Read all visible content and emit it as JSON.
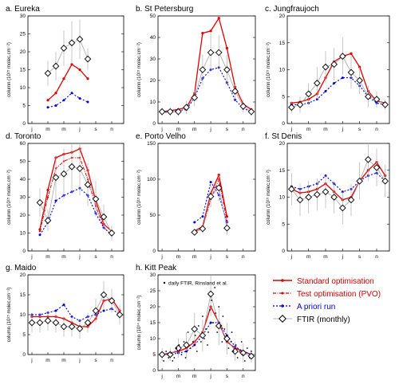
{
  "figure": {
    "ylabel_1e15": "column (10¹⁵ molec.cm⁻²)",
    "ylabel_1e14": "column (10¹⁴ molec.cm⁻²)",
    "month_ticks": [
      "j",
      "m",
      "m",
      "j",
      "s",
      "n"
    ],
    "colors": {
      "standard": "#e00000",
      "test": "#e00000",
      "apriori": "#0000e0",
      "ftir": "#000000",
      "ftir_line": "#9a9a9a",
      "errbar": "#b0b0b0"
    }
  },
  "legend": {
    "standard": "Standard optimisation",
    "test": "Test optimisation (PVO)",
    "apriori": "A priori run",
    "ftir": "FTIR (monthly)",
    "daily_note": "daily FTIR, Rinsland et al."
  },
  "chart_data": [
    {
      "type": "line",
      "title": "a.  Eureka",
      "ylabel": "column (10¹⁵ molec.cm⁻²)",
      "ylim": [
        0,
        30
      ],
      "yticks": [
        0,
        5,
        10,
        15,
        20,
        25,
        30
      ],
      "series": [
        {
          "name": "Standard optimisation",
          "x": [
            3,
            4,
            5,
            6,
            7,
            8
          ],
          "values": [
            6.5,
            8.5,
            12.5,
            16.5,
            15,
            12.5
          ]
        },
        {
          "name": "A priori run",
          "x": [
            3,
            4,
            5,
            6,
            7,
            8
          ],
          "values": [
            4.5,
            5,
            6.5,
            8.5,
            7,
            6
          ]
        },
        {
          "name": "FTIR (monthly)",
          "x": [
            3,
            4,
            5,
            6,
            7,
            8
          ],
          "values": [
            14,
            16,
            21,
            22.5,
            23.5,
            18
          ],
          "err": [
            3.5,
            4,
            5,
            6,
            5.5,
            3
          ]
        }
      ]
    },
    {
      "type": "line",
      "title": "b.  St Petersburg",
      "ylabel": "column (10¹⁵ molec.cm⁻²)",
      "ylim": [
        0,
        50
      ],
      "yticks": [
        0,
        10,
        20,
        30,
        40,
        50
      ],
      "series": [
        {
          "name": "Standard optimisation",
          "x": [
            1,
            2,
            3,
            4,
            5,
            6,
            7,
            8,
            9,
            10,
            11,
            12
          ],
          "values": [
            5.5,
            6,
            6.5,
            7.5,
            14,
            42,
            43,
            49,
            35,
            17,
            9,
            6.5
          ]
        },
        {
          "name": "A priori run",
          "x": [
            1,
            2,
            3,
            4,
            5,
            6,
            7,
            8,
            9,
            10,
            11,
            12
          ],
          "values": [
            5,
            5.5,
            6,
            6.5,
            12,
            21,
            25,
            26,
            19,
            11,
            7,
            5.5
          ]
        },
        {
          "name": "FTIR (monthly)",
          "x": [
            1,
            2,
            3,
            4,
            5,
            6,
            7,
            8,
            9,
            10,
            11,
            12
          ],
          "values": [
            5.5,
            5.5,
            5.5,
            7.5,
            12,
            25,
            33,
            33,
            25,
            15,
            8,
            5.5
          ],
          "err": [
            2,
            2,
            2,
            3,
            4,
            7,
            9,
            8,
            7,
            4,
            3,
            2
          ]
        }
      ]
    },
    {
      "type": "line",
      "title": "c.  Jungfraujoch",
      "ylabel": "column (10¹⁵ molec.cm⁻²)",
      "ylim": [
        0,
        20
      ],
      "yticks": [
        0,
        5,
        10,
        15,
        20
      ],
      "series": [
        {
          "name": "Standard optimisation",
          "x": [
            1,
            2,
            3,
            4,
            5,
            6,
            7,
            8,
            9,
            10,
            11,
            12
          ],
          "values": [
            3.8,
            4,
            4.5,
            5.5,
            8.5,
            11.5,
            12.5,
            13,
            10.5,
            6,
            4.2,
            3.8
          ]
        },
        {
          "name": "A priori run",
          "x": [
            1,
            2,
            3,
            4,
            5,
            6,
            7,
            8,
            9,
            10,
            11,
            12
          ],
          "values": [
            3.5,
            3.5,
            3.8,
            4.5,
            6,
            7.5,
            8.5,
            8.5,
            7,
            5,
            3.8,
            3.5
          ]
        },
        {
          "name": "FTIR (monthly)",
          "x": [
            1,
            2,
            3,
            4,
            5,
            6,
            7,
            8,
            9,
            10,
            11,
            12
          ],
          "values": [
            3,
            3.5,
            5.5,
            7.5,
            10.5,
            11,
            12.5,
            9.5,
            8,
            5,
            4.5,
            3.5
          ],
          "err": [
            1,
            1.5,
            2,
            3,
            3,
            3,
            3.5,
            3,
            2.5,
            2,
            1.5,
            1
          ]
        }
      ]
    },
    {
      "type": "line",
      "title": "d.  Toronto",
      "ylabel": "column (10¹⁵ molec.cm⁻²)",
      "ylim": [
        0,
        60
      ],
      "yticks": [
        0,
        10,
        20,
        30,
        40,
        50,
        60
      ],
      "series": [
        {
          "name": "Standard optimisation",
          "x": [
            2,
            3,
            4,
            5,
            6,
            7,
            8,
            9,
            10,
            11
          ],
          "values": [
            12,
            34,
            52,
            54,
            55,
            57,
            45,
            28,
            15,
            11
          ]
        },
        {
          "name": "Test optimisation (PVO)",
          "x": [
            2,
            3,
            4,
            5,
            6,
            7,
            8,
            9,
            10,
            11
          ],
          "values": [
            11,
            30,
            46,
            50,
            52,
            52,
            40,
            25,
            13,
            9
          ]
        },
        {
          "name": "A priori run",
          "x": [
            2,
            3,
            4,
            5,
            6,
            7,
            8,
            9,
            10,
            11
          ],
          "values": [
            9,
            16,
            28,
            31,
            33,
            35,
            31,
            21,
            13,
            9
          ]
        },
        {
          "name": "FTIR (monthly)",
          "x": [
            2,
            3,
            4,
            5,
            6,
            7,
            8,
            9,
            10,
            11
          ],
          "values": [
            27,
            17,
            41,
            43,
            47,
            46,
            37,
            29,
            19,
            10
          ],
          "err": [
            8,
            6,
            12,
            14,
            15,
            15,
            12,
            10,
            7,
            4
          ]
        }
      ]
    },
    {
      "type": "line",
      "title": "e.  Porto Velho",
      "ylabel": "column (10¹⁵ molec.cm⁻²)",
      "ylim": [
        0,
        150
      ],
      "yticks": [
        0,
        50,
        100,
        150
      ],
      "series": [
        {
          "name": "Standard optimisation",
          "x": [
            5,
            6,
            7,
            8,
            9
          ],
          "values": [
            28,
            34,
            80,
            106,
            48
          ]
        },
        {
          "name": "Test optimisation (PVO)",
          "x": [
            5,
            6,
            7,
            8,
            9
          ],
          "values": [
            27,
            32,
            72,
            100,
            42
          ]
        },
        {
          "name": "A priori run",
          "x": [
            5,
            6,
            7,
            8,
            9
          ],
          "values": [
            40,
            48,
            96,
            78,
            40
          ]
        },
        {
          "name": "FTIR (monthly)",
          "x": [
            5,
            6,
            7,
            8,
            9
          ],
          "values": [
            26,
            31,
            76,
            88,
            32
          ],
          "err": [
            4,
            6,
            15,
            18,
            10
          ]
        }
      ]
    },
    {
      "type": "line",
      "title": "f.  St Denis",
      "ylabel": "column (10¹⁵ molec.cm⁻²)",
      "ylim": [
        0,
        20
      ],
      "yticks": [
        0,
        5,
        10,
        15,
        20
      ],
      "series": [
        {
          "name": "Standard optimisation",
          "x": [
            1,
            2,
            3,
            4,
            5,
            6,
            7,
            8,
            9,
            10,
            11,
            12
          ],
          "values": [
            11.5,
            10.8,
            11,
            11.5,
            12.5,
            11,
            9.5,
            10,
            13,
            15,
            16.5,
            14
          ]
        },
        {
          "name": "A priori run",
          "x": [
            1,
            2,
            3,
            4,
            5,
            6,
            7,
            8,
            9,
            10,
            11,
            12
          ],
          "values": [
            12,
            11.5,
            12,
            12.5,
            14,
            12.5,
            11,
            11.5,
            13,
            14,
            14.5,
            13
          ]
        },
        {
          "name": "FTIR (monthly)",
          "x": [
            1,
            2,
            3,
            4,
            5,
            6,
            7,
            8,
            9,
            10,
            11,
            12
          ],
          "values": [
            11.5,
            9.5,
            10,
            10.5,
            11,
            10,
            8,
            9.5,
            13,
            17,
            15.5,
            13
          ],
          "err": [
            3,
            3,
            3,
            3,
            3,
            3,
            3,
            3,
            3.5,
            4,
            3.5,
            3
          ]
        }
      ]
    },
    {
      "type": "line",
      "title": "g.  Maido",
      "ylabel": "column (10¹⁵ molec.cm⁻²)",
      "ylim": [
        0,
        20
      ],
      "yticks": [
        0,
        5,
        10,
        15,
        20
      ],
      "series": [
        {
          "name": "Standard optimisation",
          "x": [
            1,
            2,
            3,
            4,
            5,
            6,
            7,
            8,
            9,
            10,
            11,
            12
          ],
          "values": [
            9.5,
            9.5,
            9.5,
            9.5,
            9,
            8,
            7,
            7,
            9,
            13.5,
            14,
            11
          ]
        },
        {
          "name": "A priori run",
          "x": [
            1,
            2,
            3,
            4,
            5,
            6,
            7,
            8,
            9,
            10,
            11,
            12
          ],
          "values": [
            10,
            10,
            10.5,
            11,
            12.5,
            9.5,
            8.5,
            9.5,
            10,
            11,
            11.5,
            10
          ]
        },
        {
          "name": "FTIR (monthly)",
          "x": [
            1,
            2,
            3,
            4,
            5,
            6,
            7,
            8,
            9,
            10,
            11,
            12
          ],
          "values": [
            8,
            8,
            8.5,
            8,
            7,
            7,
            6.5,
            8,
            11,
            15,
            13.5,
            10
          ],
          "err": [
            2.5,
            2.5,
            2.5,
            2.5,
            2.5,
            2.5,
            2.5,
            2.5,
            3,
            3.5,
            3,
            2.5
          ]
        }
      ]
    },
    {
      "type": "line",
      "title": "h.  Kitt Peak",
      "ylabel": "column (10¹⁴ molec.cm⁻²)",
      "ylim": [
        0,
        30
      ],
      "yticks": [
        0,
        5,
        10,
        15,
        20,
        25,
        30
      ],
      "series": [
        {
          "name": "Standard optimisation",
          "x": [
            1,
            2,
            3,
            4,
            5,
            6,
            7,
            8,
            9,
            10,
            11,
            12
          ],
          "values": [
            5,
            5.5,
            6,
            7,
            9,
            12,
            20,
            15,
            9,
            7,
            6,
            5
          ]
        },
        {
          "name": "A priori run",
          "x": [
            1,
            2,
            3,
            4,
            5,
            6,
            7,
            8,
            9,
            10,
            11,
            12
          ],
          "values": [
            5,
            5,
            5.5,
            6,
            8,
            11,
            15,
            15,
            11,
            7.5,
            6,
            5
          ]
        },
        {
          "name": "FTIR (monthly)",
          "x": [
            1,
            2,
            3,
            4,
            5,
            6,
            7,
            8,
            9,
            10,
            11,
            12
          ],
          "values": [
            5,
            5,
            7,
            8,
            13,
            11,
            24,
            14,
            10,
            6,
            5.5,
            4.5
          ],
          "err": [
            2,
            2,
            3,
            4,
            5,
            5,
            7,
            6,
            5,
            3,
            3,
            2
          ]
        },
        {
          "name": "daily FTIR, Rinsland et al.",
          "scatter": [
            [
              1.2,
              3
            ],
            [
              1.5,
              6
            ],
            [
              1.8,
              4
            ],
            [
              2.1,
              5.5
            ],
            [
              2.5,
              4
            ],
            [
              2.8,
              7
            ],
            [
              3.1,
              8
            ],
            [
              3.4,
              5
            ],
            [
              3.7,
              9
            ],
            [
              4.0,
              6
            ],
            [
              4.2,
              12
            ],
            [
              4.5,
              7
            ],
            [
              4.8,
              9
            ],
            [
              5.1,
              11
            ],
            [
              5.3,
              6
            ],
            [
              5.5,
              14
            ],
            [
              5.8,
              9
            ],
            [
              6.0,
              17
            ],
            [
              6.2,
              10
            ],
            [
              6.4,
              13
            ],
            [
              6.6,
              8
            ],
            [
              6.9,
              19
            ],
            [
              7.1,
              22
            ],
            [
              7.3,
              15
            ],
            [
              7.6,
              18
            ],
            [
              7.8,
              12
            ],
            [
              8.0,
              20
            ],
            [
              8.2,
              14
            ],
            [
              8.4,
              9
            ],
            [
              8.7,
              13
            ],
            [
              9.0,
              11
            ],
            [
              9.2,
              7
            ],
            [
              9.5,
              9
            ],
            [
              9.8,
              6
            ],
            [
              10.1,
              8
            ],
            [
              10.3,
              4
            ],
            [
              10.6,
              6
            ],
            [
              10.9,
              5
            ],
            [
              11.2,
              3
            ],
            [
              11.5,
              7
            ],
            [
              11.8,
              4
            ],
            [
              12.0,
              6
            ],
            [
              2.3,
              3
            ],
            [
              3.9,
              4
            ],
            [
              5.0,
              8
            ],
            [
              6.7,
              12
            ],
            [
              7.5,
              26
            ],
            [
              8.5,
              17
            ],
            [
              9.6,
              12
            ],
            [
              10.8,
              9
            ]
          ]
        }
      ]
    }
  ]
}
